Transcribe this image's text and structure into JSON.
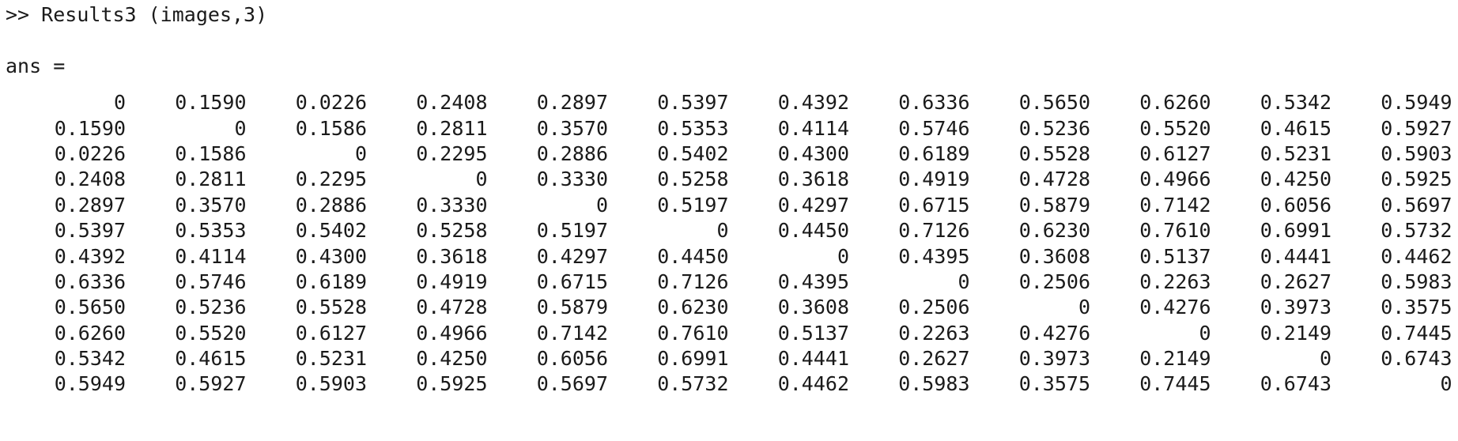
{
  "command": {
    "prompt": ">>",
    "text": "Results3 (images,3)"
  },
  "output": {
    "label": "ans ="
  },
  "matrix": [
    [
      "0",
      "0.1590",
      "0.0226",
      "0.2408",
      "0.2897",
      "0.5397",
      "0.4392",
      "0.6336",
      "0.5650",
      "0.6260",
      "0.5342",
      "0.5949"
    ],
    [
      "0.1590",
      "0",
      "0.1586",
      "0.2811",
      "0.3570",
      "0.5353",
      "0.4114",
      "0.5746",
      "0.5236",
      "0.5520",
      "0.4615",
      "0.5927"
    ],
    [
      "0.0226",
      "0.1586",
      "0",
      "0.2295",
      "0.2886",
      "0.5402",
      "0.4300",
      "0.6189",
      "0.5528",
      "0.6127",
      "0.5231",
      "0.5903"
    ],
    [
      "0.2408",
      "0.2811",
      "0.2295",
      "0",
      "0.3330",
      "0.5258",
      "0.3618",
      "0.4919",
      "0.4728",
      "0.4966",
      "0.4250",
      "0.5925"
    ],
    [
      "0.2897",
      "0.3570",
      "0.2886",
      "0.3330",
      "0",
      "0.5197",
      "0.4297",
      "0.6715",
      "0.5879",
      "0.7142",
      "0.6056",
      "0.5697"
    ],
    [
      "0.5397",
      "0.5353",
      "0.5402",
      "0.5258",
      "0.5197",
      "0",
      "0.4450",
      "0.7126",
      "0.6230",
      "0.7610",
      "0.6991",
      "0.5732"
    ],
    [
      "0.4392",
      "0.4114",
      "0.4300",
      "0.3618",
      "0.4297",
      "0.4450",
      "0",
      "0.4395",
      "0.3608",
      "0.5137",
      "0.4441",
      "0.4462"
    ],
    [
      "0.6336",
      "0.5746",
      "0.6189",
      "0.4919",
      "0.6715",
      "0.7126",
      "0.4395",
      "0",
      "0.2506",
      "0.2263",
      "0.2627",
      "0.5983"
    ],
    [
      "0.5650",
      "0.5236",
      "0.5528",
      "0.4728",
      "0.5879",
      "0.6230",
      "0.3608",
      "0.2506",
      "0",
      "0.4276",
      "0.3973",
      "0.3575"
    ],
    [
      "0.6260",
      "0.5520",
      "0.6127",
      "0.4966",
      "0.7142",
      "0.7610",
      "0.5137",
      "0.2263",
      "0.4276",
      "0",
      "0.2149",
      "0.7445"
    ],
    [
      "0.5342",
      "0.4615",
      "0.5231",
      "0.4250",
      "0.6056",
      "0.6991",
      "0.4441",
      "0.2627",
      "0.3973",
      "0.2149",
      "0",
      "0.6743"
    ],
    [
      "0.5949",
      "0.5927",
      "0.5903",
      "0.5925",
      "0.5697",
      "0.5732",
      "0.4462",
      "0.5983",
      "0.3575",
      "0.7445",
      "0.6743",
      "0"
    ]
  ]
}
